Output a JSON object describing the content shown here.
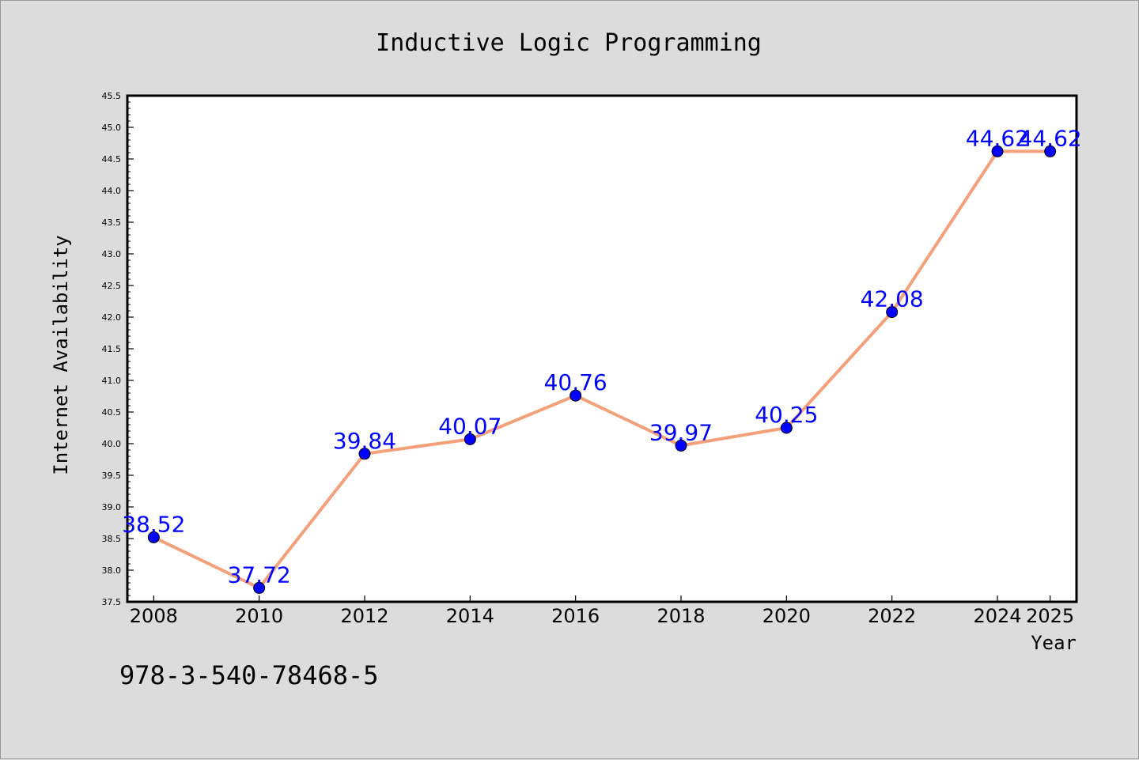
{
  "chart_data": {
    "type": "line",
    "title": "Inductive Logic Programming",
    "xlabel": "Year",
    "ylabel": "Internet Availability",
    "categories": [
      "2008",
      "2010",
      "2012",
      "2014",
      "2016",
      "2018",
      "2020",
      "2022",
      "2024",
      "2025"
    ],
    "series": [
      {
        "values": [
          38.52,
          37.72,
          39.84,
          40.07,
          40.76,
          39.97,
          40.25,
          42.08,
          44.62,
          44.62
        ],
        "labels": [
          "38.52",
          "37.72",
          "39.84",
          "40.07",
          "40.76",
          "39.97",
          "40.25",
          "42.08",
          "44.62",
          "44.62"
        ],
        "line_color": "#f4a07a",
        "marker_color": "#0000ff",
        "label_color": "#0000ff"
      }
    ],
    "ylim": [
      37.5,
      45.5
    ],
    "y_ticks": [
      "37.5",
      "38.0",
      "38.5",
      "39.0",
      "39.5",
      "40.0",
      "40.5",
      "41.0",
      "41.5",
      "42.0",
      "42.5",
      "43.0",
      "43.5",
      "44.0",
      "44.5",
      "45.0",
      "45.5"
    ],
    "grid": false,
    "legend": "none"
  },
  "footer_text": "978-3-540-78468-5",
  "colors": {
    "figure_background": "#dcdcdc",
    "plot_background": "#ffffff",
    "axes_border": "#000000"
  }
}
